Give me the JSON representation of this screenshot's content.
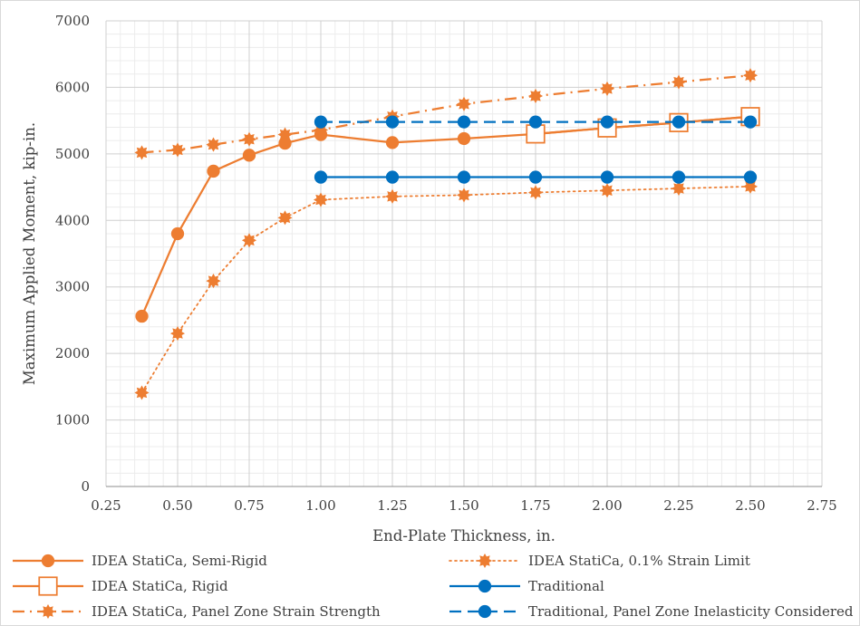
{
  "chart_data": {
    "type": "line",
    "title": "",
    "xlabel": "End-Plate Thickness, in.",
    "ylabel": "Maximum Applied Moment, kip-in.",
    "xlim": [
      0.25,
      2.75
    ],
    "ylim": [
      0,
      7000
    ],
    "x_ticks": [
      0.25,
      0.5,
      0.75,
      1.0,
      1.25,
      1.5,
      1.75,
      2.0,
      2.25,
      2.5,
      2.75
    ],
    "x_tick_labels": [
      "0.25",
      "0.50",
      "0.75",
      "1.00",
      "1.25",
      "1.50",
      "1.75",
      "2.00",
      "2.25",
      "2.50",
      "2.75"
    ],
    "y_ticks": [
      0,
      1000,
      2000,
      3000,
      4000,
      5000,
      6000,
      7000
    ],
    "y_tick_labels": [
      "0",
      "1000",
      "2000",
      "3000",
      "4000",
      "5000",
      "6000",
      "7000"
    ],
    "grid": true,
    "legend_position": "bottom",
    "series": [
      {
        "name": "IDEA StatiCa, Semi-Rigid",
        "color": "#ed7d31",
        "dash": "solid",
        "marker": "circle",
        "x": [
          0.375,
          0.5,
          0.625,
          0.75,
          0.875,
          1.0,
          1.25,
          1.5,
          1.75,
          2.0,
          2.25,
          2.5
        ],
        "y": [
          2560,
          3800,
          4740,
          4980,
          5160,
          5290,
          5170,
          5230,
          5300,
          5390,
          5470,
          5560
        ]
      },
      {
        "name": "IDEA StatiCa, Rigid",
        "color": "#ed7d31",
        "dash": "solid",
        "marker": "hollow-square",
        "x": [
          1.75,
          2.0,
          2.25,
          2.5
        ],
        "y": [
          5300,
          5390,
          5470,
          5560
        ]
      },
      {
        "name": "IDEA StatiCa, Panel Zone Strain Strength",
        "color": "#ed7d31",
        "dash": "dashdot",
        "marker": "gear",
        "x": [
          0.375,
          0.5,
          0.625,
          0.75,
          0.875,
          1.0,
          1.25,
          1.5,
          1.75,
          2.0,
          2.25,
          2.5
        ],
        "y": [
          5020,
          5060,
          5140,
          5220,
          5290,
          5360,
          5560,
          5750,
          5870,
          5980,
          6080,
          6180
        ]
      },
      {
        "name": "IDEA StatiCa, 0.1% Strain Limit",
        "color": "#ed7d31",
        "dash": "dotted",
        "marker": "gear",
        "x": [
          0.375,
          0.5,
          0.625,
          0.75,
          0.875,
          1.0,
          1.25,
          1.5,
          1.75,
          2.0,
          2.25,
          2.5
        ],
        "y": [
          1410,
          2300,
          3090,
          3700,
          4040,
          4310,
          4360,
          4380,
          4420,
          4450,
          4480,
          4510
        ]
      },
      {
        "name": "Traditional",
        "color": "#0070c0",
        "dash": "solid",
        "marker": "circle",
        "x": [
          1.0,
          1.25,
          1.5,
          1.75,
          2.0,
          2.25,
          2.5
        ],
        "y": [
          4650,
          4650,
          4650,
          4650,
          4650,
          4650,
          4650
        ]
      },
      {
        "name": "Traditional, Panel Zone Inelasticity Considered",
        "color": "#0070c0",
        "dash": "dashed",
        "marker": "circle",
        "x": [
          1.0,
          1.25,
          1.5,
          1.75,
          2.0,
          2.25,
          2.5
        ],
        "y": [
          5480,
          5480,
          5480,
          5480,
          5480,
          5480,
          5480
        ]
      }
    ],
    "legend_order": [
      0,
      3,
      1,
      4,
      2,
      5
    ]
  }
}
